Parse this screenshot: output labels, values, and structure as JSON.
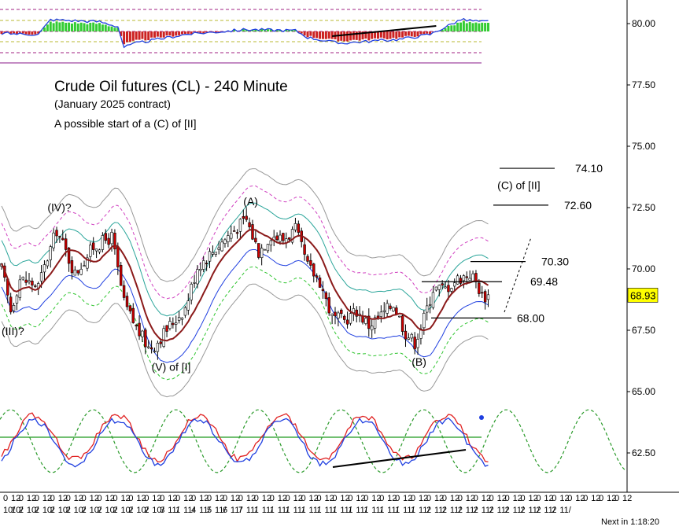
{
  "chart_data": {
    "type": "candlestick",
    "title": "Crude Oil futures (CL) - 240 Minute",
    "subtitle": "(January 2025 contract)",
    "note": "A possible start of a (C) of [II]",
    "y_axis": {
      "ticks": [
        "80.00",
        "77.50",
        "75.00",
        "72.50",
        "70.00",
        "67.50",
        "65.00",
        "62.50"
      ],
      "tick_values": [
        80.0,
        77.5,
        75.0,
        72.5,
        70.0,
        67.5,
        65.0,
        62.5
      ],
      "ylim": [
        61.9,
        81.0
      ],
      "position": "right"
    },
    "last_price": {
      "label": "68.93",
      "value": 68.93,
      "color": "#ffff00"
    },
    "x_axis": {
      "row1": [
        "0",
        "12",
        "0",
        "12",
        "0",
        "12",
        "0",
        "12",
        "0",
        "12",
        "0",
        "12",
        "0",
        "12",
        "0",
        "12",
        "0",
        "12",
        "0",
        "12",
        "0",
        "12",
        "0",
        "12",
        "0",
        "12",
        "0",
        "12",
        "0",
        "12",
        "0",
        "12",
        "0",
        "12",
        "0",
        "12",
        "0",
        "12",
        "0",
        "12",
        "0",
        "12",
        "0",
        "12",
        "0",
        "12",
        "0",
        "12",
        "0",
        "12",
        "0",
        "12",
        "0",
        "12",
        "0",
        "12",
        "0",
        "12",
        "0",
        "12",
        "0",
        "12",
        "0",
        "12",
        "0",
        "12",
        "0",
        "12",
        "0",
        "12",
        "0",
        "12",
        "0",
        "12",
        "0",
        "12",
        "0",
        "12",
        "0",
        "12"
      ],
      "row2": [
        "10/",
        "10/",
        "2",
        "10/",
        "2",
        "10/",
        "2",
        "10/",
        "2",
        "10/",
        "2",
        "10/",
        "2",
        "10/",
        "2",
        "10/",
        "2",
        "10/",
        "2",
        "10/",
        "3",
        "11/",
        "1",
        "11/",
        "4",
        "11/",
        "5",
        "11/",
        "6",
        "11/",
        "7",
        "11/",
        "1",
        "11/",
        "1",
        "11/",
        "1",
        "11/",
        "1",
        "11/",
        "1",
        "11/",
        "1",
        "11/",
        "1",
        "11/",
        "1",
        "11/",
        "1",
        "11/",
        "1",
        "11/",
        "1",
        "11/",
        "2",
        "11/",
        "2",
        "11/",
        "2",
        "11/",
        "2",
        "11/",
        "2",
        "11/",
        "2",
        "11/",
        "2",
        "11/",
        "2",
        "11/",
        "2",
        "11/"
      ]
    },
    "footer": "Next in 1:18:20",
    "wave_labels": [
      {
        "text": "(III)?",
        "x_index": 0,
        "price": 67.3
      },
      {
        "text": "(IV)?",
        "x_index": 15,
        "price": 72.35
      },
      {
        "text": "(V) of [I]",
        "x_index": 49,
        "price": 65.85
      },
      {
        "text": "(A)",
        "x_index": 79,
        "price": 72.6
      },
      {
        "text": "(B)",
        "x_index": 134,
        "price": 66.05
      },
      {
        "text": "(C) of [II]",
        "x_index": 162,
        "price": 73.25
      }
    ],
    "levels": [
      {
        "label": "74.10",
        "value": 74.1
      },
      {
        "label": "72.60",
        "value": 72.6
      },
      {
        "label": "70.30",
        "value": 70.3
      },
      {
        "label": "69.48",
        "value": 69.48
      },
      {
        "label": "68.00",
        "value": 68.0
      }
    ],
    "colors": {
      "up_candle": "#ffffff",
      "down_candle": "#cc0000",
      "ma": "#8b1a1a",
      "inner_band": "#1f3fe0",
      "teal_band": "#2aa59a",
      "magenta_band": "#d040c0",
      "green_band": "#2ec42e",
      "outer_band": "#999999",
      "osc_red": "#e02020",
      "osc_blue": "#1f3fe0",
      "osc_cycle": "#2a9a2a",
      "osc_baseline": "#1f9a1f"
    }
  }
}
